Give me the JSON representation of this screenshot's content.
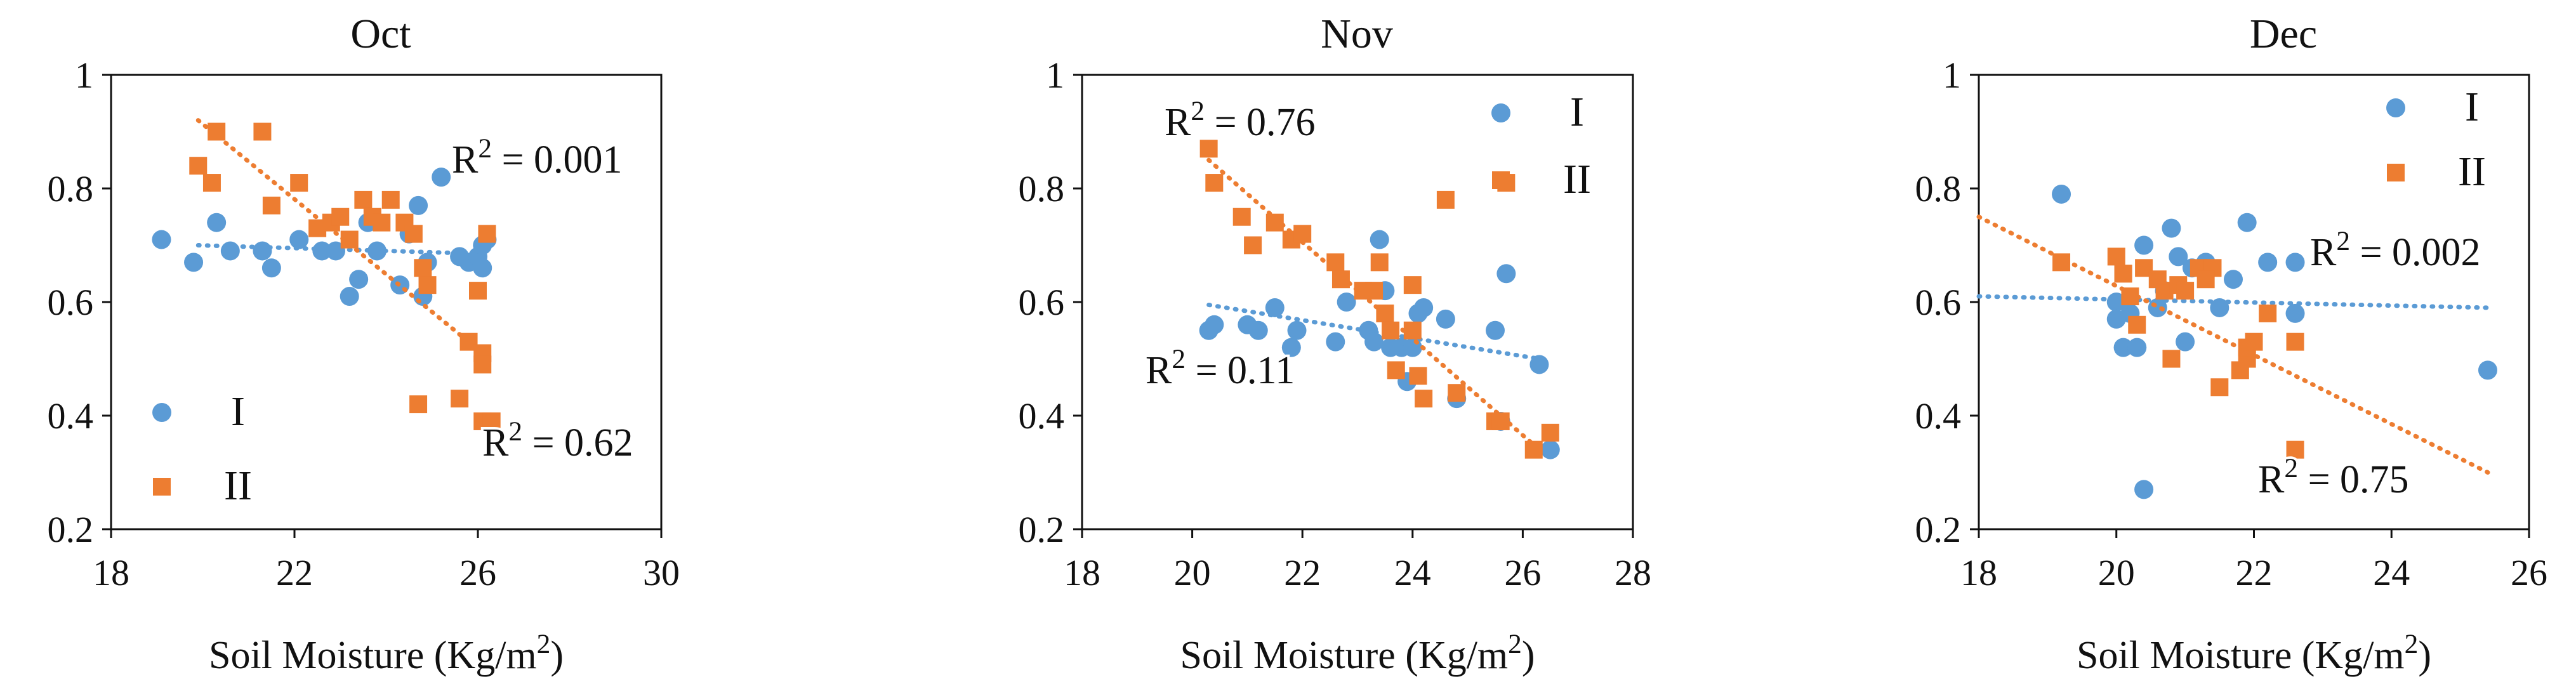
{
  "colors": {
    "I": "#5B9BD5",
    "II": "#ED7D31",
    "axis": "#111111"
  },
  "chart_data": [
    {
      "type": "scatter",
      "title": "Oct",
      "xlabel": "Soil Moisture (Kg/m2)",
      "ylabel": "",
      "xlim": [
        18,
        30
      ],
      "ylim": [
        0.2,
        1.0
      ],
      "xticks": [
        "18",
        "22",
        "26",
        "30"
      ],
      "yticks": [
        "0.2",
        "0.4",
        "0.6",
        "0.8",
        "1"
      ],
      "legend": [
        "I",
        "II"
      ],
      "series": [
        {
          "name": "I",
          "marker": "circle",
          "trend": [
            [
              19.9,
              0.7
            ],
            [
              26.1,
              0.685
            ]
          ],
          "r2": "R2 = 0.001",
          "points": [
            [
              19.1,
              0.71
            ],
            [
              19.8,
              0.67
            ],
            [
              20.3,
              0.74
            ],
            [
              20.6,
              0.69
            ],
            [
              21.3,
              0.69
            ],
            [
              21.5,
              0.66
            ],
            [
              22.1,
              0.71
            ],
            [
              22.6,
              0.69
            ],
            [
              22.9,
              0.69
            ],
            [
              23.2,
              0.61
            ],
            [
              23.4,
              0.64
            ],
            [
              23.6,
              0.74
            ],
            [
              23.8,
              0.69
            ],
            [
              24.3,
              0.63
            ],
            [
              24.5,
              0.72
            ],
            [
              24.7,
              0.77
            ],
            [
              24.8,
              0.61
            ],
            [
              24.9,
              0.67
            ],
            [
              25.2,
              0.82
            ],
            [
              25.6,
              0.68
            ],
            [
              25.8,
              0.67
            ],
            [
              26.0,
              0.68
            ],
            [
              26.1,
              0.66
            ],
            [
              26.2,
              0.71
            ],
            [
              26.1,
              0.7
            ]
          ]
        },
        {
          "name": "II",
          "marker": "square",
          "trend": [
            [
              19.9,
              0.92
            ],
            [
              26.1,
              0.51
            ]
          ],
          "r2": "R2 = 0.62",
          "points": [
            [
              19.9,
              0.84
            ],
            [
              20.2,
              0.81
            ],
            [
              20.3,
              0.9
            ],
            [
              21.3,
              0.9
            ],
            [
              21.5,
              0.77
            ],
            [
              22.1,
              0.81
            ],
            [
              22.5,
              0.73
            ],
            [
              22.8,
              0.74
            ],
            [
              23.0,
              0.75
            ],
            [
              23.2,
              0.71
            ],
            [
              23.5,
              0.78
            ],
            [
              23.7,
              0.75
            ],
            [
              23.9,
              0.74
            ],
            [
              24.1,
              0.78
            ],
            [
              24.4,
              0.74
            ],
            [
              24.6,
              0.72
            ],
            [
              24.8,
              0.66
            ],
            [
              24.9,
              0.63
            ],
            [
              24.7,
              0.42
            ],
            [
              25.6,
              0.43
            ],
            [
              25.8,
              0.53
            ],
            [
              26.0,
              0.62
            ],
            [
              26.1,
              0.51
            ],
            [
              26.1,
              0.49
            ],
            [
              26.2,
              0.72
            ],
            [
              26.1,
              0.39
            ],
            [
              26.3,
              0.39
            ]
          ]
        }
      ]
    },
    {
      "type": "scatter",
      "title": "Nov",
      "xlabel": "Soil Moisture (Kg/m2)",
      "ylabel": "",
      "xlim": [
        18,
        28
      ],
      "ylim": [
        0.2,
        1.0
      ],
      "xticks": [
        "18",
        "20",
        "22",
        "24",
        "26",
        "28"
      ],
      "yticks": [
        "0.2",
        "0.4",
        "0.6",
        "0.8",
        "1"
      ],
      "legend": [
        "I",
        "II"
      ],
      "series": [
        {
          "name": "I",
          "marker": "circle",
          "trend": [
            [
              20.3,
              0.595
            ],
            [
              26.3,
              0.5
            ]
          ],
          "r2": "R2 = 0.11",
          "points": [
            [
              20.3,
              0.55
            ],
            [
              20.4,
              0.56
            ],
            [
              21.0,
              0.56
            ],
            [
              21.2,
              0.55
            ],
            [
              21.5,
              0.59
            ],
            [
              21.8,
              0.52
            ],
            [
              21.9,
              0.55
            ],
            [
              22.6,
              0.53
            ],
            [
              22.8,
              0.6
            ],
            [
              23.2,
              0.55
            ],
            [
              23.3,
              0.53
            ],
            [
              23.4,
              0.71
            ],
            [
              23.5,
              0.62
            ],
            [
              23.6,
              0.52
            ],
            [
              23.8,
              0.52
            ],
            [
              23.9,
              0.46
            ],
            [
              24.0,
              0.52
            ],
            [
              24.1,
              0.58
            ],
            [
              24.2,
              0.59
            ],
            [
              24.6,
              0.57
            ],
            [
              24.8,
              0.43
            ],
            [
              25.5,
              0.55
            ],
            [
              25.7,
              0.65
            ],
            [
              26.3,
              0.49
            ],
            [
              26.5,
              0.34
            ],
            [
              25.6,
              0.39
            ]
          ]
        },
        {
          "name": "II",
          "marker": "square",
          "trend": [
            [
              20.3,
              0.85
            ],
            [
              26.3,
              0.34
            ]
          ],
          "r2": "R2 = 0.76",
          "points": [
            [
              20.3,
              0.87
            ],
            [
              20.4,
              0.81
            ],
            [
              20.9,
              0.75
            ],
            [
              21.1,
              0.7
            ],
            [
              21.5,
              0.74
            ],
            [
              21.8,
              0.71
            ],
            [
              22.0,
              0.72
            ],
            [
              22.6,
              0.67
            ],
            [
              22.7,
              0.64
            ],
            [
              23.1,
              0.62
            ],
            [
              23.3,
              0.62
            ],
            [
              23.4,
              0.67
            ],
            [
              23.5,
              0.58
            ],
            [
              23.6,
              0.55
            ],
            [
              23.7,
              0.48
            ],
            [
              24.0,
              0.63
            ],
            [
              24.0,
              0.55
            ],
            [
              24.1,
              0.47
            ],
            [
              24.2,
              0.43
            ],
            [
              24.6,
              0.78
            ],
            [
              24.8,
              0.44
            ],
            [
              25.5,
              0.39
            ],
            [
              25.7,
              0.81
            ],
            [
              26.2,
              0.34
            ],
            [
              26.5,
              0.37
            ],
            [
              25.6,
              0.39
            ]
          ]
        }
      ]
    },
    {
      "type": "scatter",
      "title": "Dec",
      "xlabel": "Soil Moisture (Kg/m2)",
      "ylabel": "",
      "xlim": [
        18,
        26
      ],
      "ylim": [
        0.2,
        1.0
      ],
      "xticks": [
        "18",
        "20",
        "22",
        "24",
        "26"
      ],
      "yticks": [
        "0.2",
        "0.4",
        "0.6",
        "0.8",
        "1"
      ],
      "legend": [
        "I",
        "II"
      ],
      "series": [
        {
          "name": "I",
          "marker": "circle",
          "trend": [
            [
              18.0,
              0.61
            ],
            [
              25.4,
              0.59
            ]
          ],
          "r2": "R2 = 0.002",
          "points": [
            [
              19.2,
              0.79
            ],
            [
              20.0,
              0.6
            ],
            [
              20.0,
              0.57
            ],
            [
              20.1,
              0.52
            ],
            [
              20.2,
              0.58
            ],
            [
              20.3,
              0.52
            ],
            [
              20.4,
              0.7
            ],
            [
              20.6,
              0.59
            ],
            [
              20.8,
              0.73
            ],
            [
              20.9,
              0.68
            ],
            [
              21.0,
              0.53
            ],
            [
              21.3,
              0.67
            ],
            [
              21.5,
              0.59
            ],
            [
              21.7,
              0.64
            ],
            [
              21.9,
              0.74
            ],
            [
              22.2,
              0.67
            ],
            [
              22.6,
              0.58
            ],
            [
              22.6,
              0.67
            ],
            [
              20.4,
              0.27
            ],
            [
              25.4,
              0.48
            ],
            [
              21.1,
              0.66
            ],
            [
              20.7,
              0.62
            ]
          ]
        },
        {
          "name": "II",
          "marker": "square",
          "trend": [
            [
              18.0,
              0.75
            ],
            [
              25.4,
              0.3
            ]
          ],
          "r2": "R2 = 0.75",
          "points": [
            [
              19.2,
              0.67
            ],
            [
              20.0,
              0.68
            ],
            [
              20.1,
              0.65
            ],
            [
              20.2,
              0.61
            ],
            [
              20.3,
              0.56
            ],
            [
              20.4,
              0.66
            ],
            [
              20.6,
              0.64
            ],
            [
              20.7,
              0.62
            ],
            [
              20.8,
              0.5
            ],
            [
              20.9,
              0.63
            ],
            [
              21.0,
              0.62
            ],
            [
              21.2,
              0.66
            ],
            [
              21.4,
              0.66
            ],
            [
              21.5,
              0.45
            ],
            [
              21.8,
              0.48
            ],
            [
              21.9,
              0.5
            ],
            [
              21.9,
              0.52
            ],
            [
              22.0,
              0.53
            ],
            [
              22.2,
              0.58
            ],
            [
              22.6,
              0.53
            ],
            [
              22.6,
              0.34
            ],
            [
              20.1,
              0.65
            ],
            [
              21.3,
              0.64
            ]
          ]
        }
      ]
    }
  ]
}
